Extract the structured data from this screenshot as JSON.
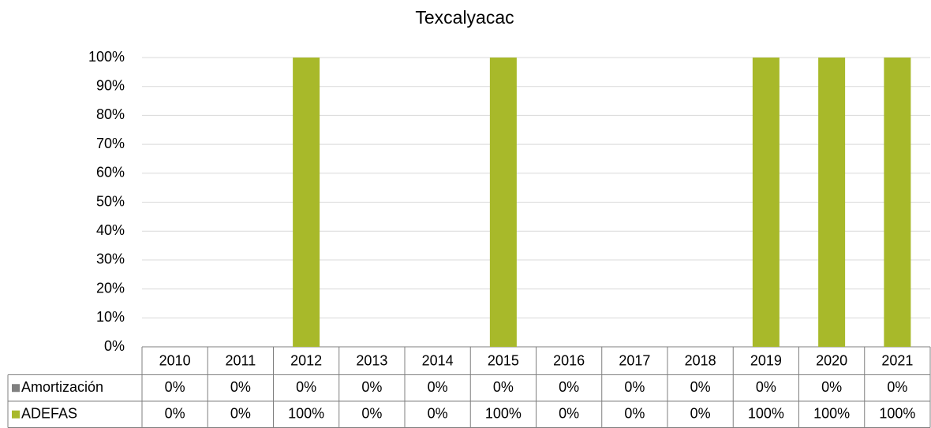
{
  "chart_data": {
    "type": "stacked_bar",
    "title": "Texcalyacac",
    "categories": [
      "2010",
      "2011",
      "2012",
      "2013",
      "2014",
      "2015",
      "2016",
      "2017",
      "2018",
      "2019",
      "2020",
      "2021"
    ],
    "series": [
      {
        "name": "Amortización",
        "color": "#808080",
        "values": [
          0,
          0,
          0,
          0,
          0,
          0,
          0,
          0,
          0,
          0,
          0,
          0
        ],
        "value_labels": [
          "0%",
          "0%",
          "0%",
          "0%",
          "0%",
          "0%",
          "0%",
          "0%",
          "0%",
          "0%",
          "0%",
          "0%"
        ]
      },
      {
        "name": "ADEFAS",
        "color": "#a8b92a",
        "values": [
          0,
          0,
          100,
          0,
          0,
          100,
          0,
          0,
          0,
          100,
          100,
          100
        ],
        "value_labels": [
          "0%",
          "0%",
          "100%",
          "0%",
          "0%",
          "100%",
          "0%",
          "0%",
          "0%",
          "100%",
          "100%",
          "100%"
        ]
      }
    ],
    "ylim": [
      0,
      100
    ],
    "yticks": [
      {
        "value": 0,
        "label": "0%"
      },
      {
        "value": 10,
        "label": "10%"
      },
      {
        "value": 20,
        "label": "20%"
      },
      {
        "value": 30,
        "label": "30%"
      },
      {
        "value": 40,
        "label": "40%"
      },
      {
        "value": 50,
        "label": "50%"
      },
      {
        "value": 60,
        "label": "60%"
      },
      {
        "value": 70,
        "label": "70%"
      },
      {
        "value": 80,
        "label": "80%"
      },
      {
        "value": 90,
        "label": "90%"
      },
      {
        "value": 100,
        "label": "100%"
      }
    ],
    "grid": true,
    "legend": "table"
  }
}
